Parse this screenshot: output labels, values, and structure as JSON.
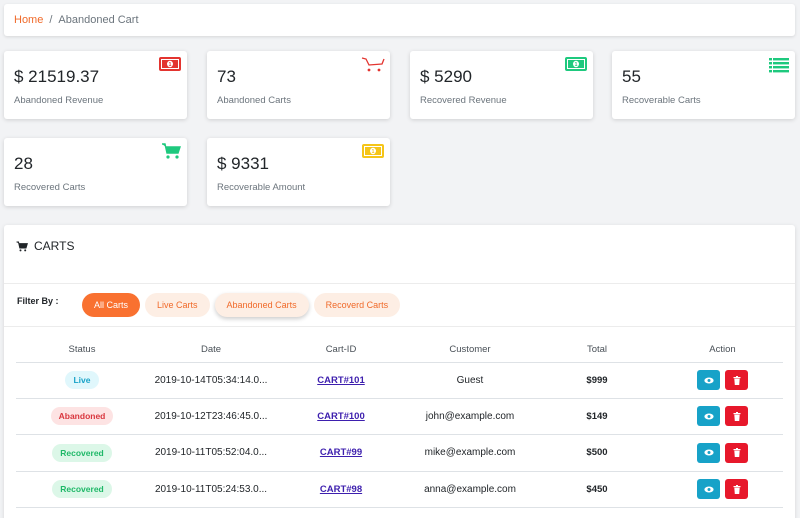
{
  "breadcrumb": {
    "home": "Home",
    "separator": "/",
    "current": "Abandoned Cart"
  },
  "stats": [
    {
      "value": "$ 21519.37",
      "label": "Abandoned Revenue",
      "icon": "money-bill-icon",
      "color": "#e3342f"
    },
    {
      "value": "73",
      "label": "Abandoned Carts",
      "icon": "cart-outline-icon",
      "color": "#e3342f"
    },
    {
      "value": "$ 5290",
      "label": "Recovered Revenue",
      "icon": "money-bill-icon",
      "color": "#1ec97e"
    },
    {
      "value": "55",
      "label": "Recoverable Carts",
      "icon": "list-icon",
      "color": "#1ec97e"
    },
    {
      "value": "28",
      "label": "Recovered Carts",
      "icon": "shopping-cart-icon",
      "color": "#1ec97e"
    },
    {
      "value": "$ 9331",
      "label": "Recoverable Amount",
      "icon": "money-bill-icon",
      "color": "#f5c518"
    }
  ],
  "carts_panel": {
    "title": "CARTS",
    "filter_label": "Filter By :",
    "filters": [
      "All Carts",
      "Live Carts",
      "Abandoned Carts",
      "Recoverd Carts"
    ],
    "active_filter": "All Carts",
    "columns": [
      "Status",
      "Date",
      "Cart-ID",
      "Customer",
      "Total",
      "Action"
    ],
    "rows": [
      {
        "status": "Live",
        "date": "2019-10-14T05:34:14.0...",
        "cart_id": "CART#101",
        "customer": "Guest",
        "total": "$999"
      },
      {
        "status": "Abandoned",
        "date": "2019-10-12T23:46:45.0...",
        "cart_id": "CART#100",
        "customer": "john@example.com",
        "total": "$149"
      },
      {
        "status": "Recovered",
        "date": "2019-10-11T05:52:04.0...",
        "cart_id": "CART#99",
        "customer": "mike@example.com",
        "total": "$500"
      },
      {
        "status": "Recovered",
        "date": "2019-10-11T05:24:53.0...",
        "cart_id": "CART#98",
        "customer": "anna@example.com",
        "total": "$450"
      }
    ]
  },
  "status_colors": {
    "Live": {
      "bg": "#e0f7fc",
      "fg": "#17a2c8"
    },
    "Abandoned": {
      "bg": "#fde3e3",
      "fg": "#d9363e"
    },
    "Recovered": {
      "bg": "#dcf7e8",
      "fg": "#1fb868"
    }
  }
}
